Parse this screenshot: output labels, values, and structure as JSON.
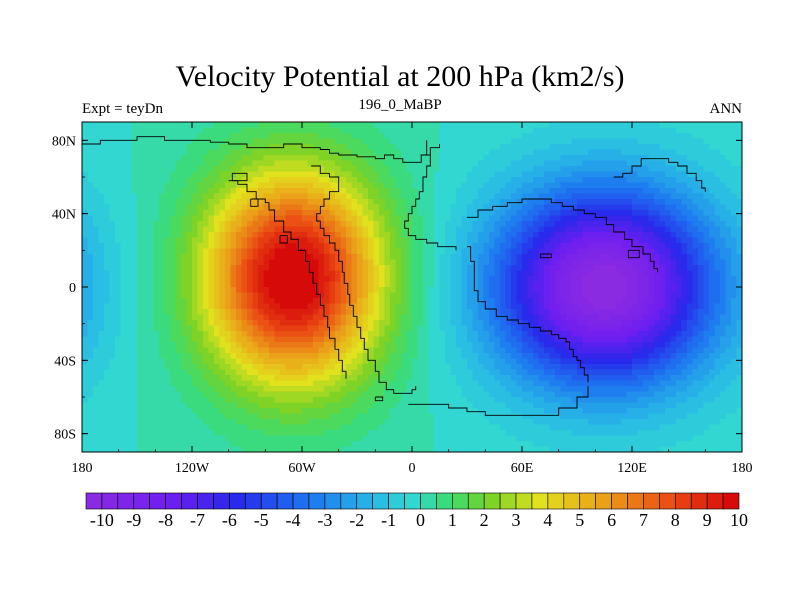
{
  "chart_data": {
    "type": "heatmap",
    "title": "Velocity Potential at 200 hPa (km2/s)",
    "left_string": "Expt = teyDn",
    "center_string": "196_0_MaBP",
    "right_string": "ANN",
    "xlim": [
      -180,
      180
    ],
    "ylim": [
      -90,
      90
    ],
    "x_ticks": [
      {
        "value": -180,
        "label": "180"
      },
      {
        "value": -120,
        "label": "120W"
      },
      {
        "value": -60,
        "label": "60W"
      },
      {
        "value": 0,
        "label": "0"
      },
      {
        "value": 60,
        "label": "60E"
      },
      {
        "value": 120,
        "label": "120E"
      },
      {
        "value": 180,
        "label": "180"
      }
    ],
    "y_ticks": [
      {
        "value": 80,
        "label": "80N"
      },
      {
        "value": 40,
        "label": "40N"
      },
      {
        "value": 0,
        "label": "0"
      },
      {
        "value": -40,
        "label": "40S"
      },
      {
        "value": -80,
        "label": "80S"
      }
    ],
    "colorbar": {
      "min": -10,
      "max": 10,
      "step": 0.5,
      "labels": [
        "-10",
        "-9",
        "-8",
        "-7",
        "-6",
        "-5",
        "-4",
        "-3",
        "-2",
        "-1",
        "0",
        "1",
        "2",
        "3",
        "4",
        "5",
        "6",
        "7",
        "8",
        "9",
        "10"
      ]
    },
    "field_features": [
      {
        "name": "positive-maximum",
        "lon": -65,
        "lat": 5,
        "value": 10.5,
        "spread_lon": 52,
        "spread_lat": 62
      },
      {
        "name": "negative-minimum",
        "lon": 105,
        "lat": 0,
        "value": -10.5,
        "spread_lon": 65,
        "spread_lat": 58
      }
    ]
  }
}
